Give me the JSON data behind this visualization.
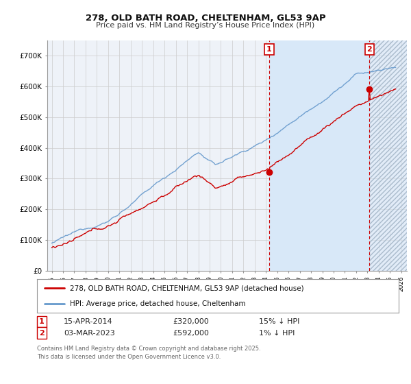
{
  "title": "278, OLD BATH ROAD, CHELTENHAM, GL53 9AP",
  "subtitle": "Price paid vs. HM Land Registry’s House Price Index (HPI)",
  "background_color": "#ffffff",
  "plot_bg_color": "#eef2f8",
  "grid_color": "#cccccc",
  "red_line_color": "#cc0000",
  "blue_line_color": "#6699cc",
  "shade_color": "#d8e8f8",
  "marker1_label": "1",
  "marker2_label": "2",
  "legend_line1": "278, OLD BATH ROAD, CHELTENHAM, GL53 9AP (detached house)",
  "legend_line2": "HPI: Average price, detached house, Cheltenham",
  "footnote": "Contains HM Land Registry data © Crown copyright and database right 2025.\nThis data is licensed under the Open Government Licence v3.0.",
  "ylim": [
    0,
    750000
  ],
  "yticks": [
    0,
    100000,
    200000,
    300000,
    400000,
    500000,
    600000,
    700000
  ],
  "ytick_labels": [
    "£0",
    "£100K",
    "£200K",
    "£300K",
    "£400K",
    "£500K",
    "£600K",
    "£700K"
  ],
  "x_start_year": 1995,
  "x_end_year": 2026,
  "marker1_year": 2014.29,
  "marker2_year": 2023.17,
  "marker1_price": 320000,
  "marker2_price": 592000,
  "table_row1": [
    "1",
    "15-APR-2014",
    "£320,000",
    "15% ↓ HPI"
  ],
  "table_row2": [
    "2",
    "03-MAR-2023",
    "£592,000",
    "1% ↓ HPI"
  ]
}
